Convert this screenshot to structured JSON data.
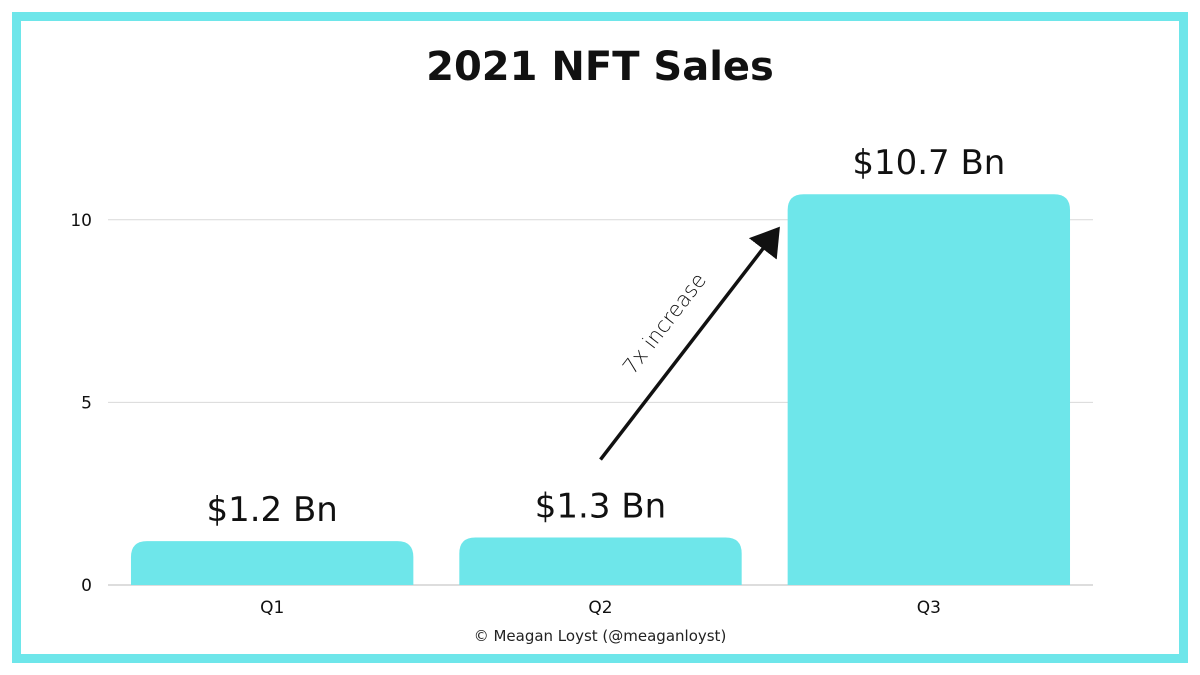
{
  "chart_data": {
    "type": "bar",
    "title": "2021 NFT Sales",
    "categories": [
      "Q1",
      "Q2",
      "Q3"
    ],
    "values": [
      1.2,
      1.3,
      10.7
    ],
    "data_labels": [
      "$1.2 Bn",
      "$1.3 Bn",
      "$10.7 Bn"
    ],
    "yticks": [
      0,
      5,
      10
    ],
    "ylim": [
      0,
      11.5
    ],
    "grid": true,
    "bar_color": "#6ee6ea",
    "frame_color": "#6ee6ea",
    "annotation": {
      "text": "7x increase",
      "from_category": "Q2",
      "to_category": "Q3"
    },
    "credit": "© Meagan Loyst (@meaganloyst)"
  }
}
